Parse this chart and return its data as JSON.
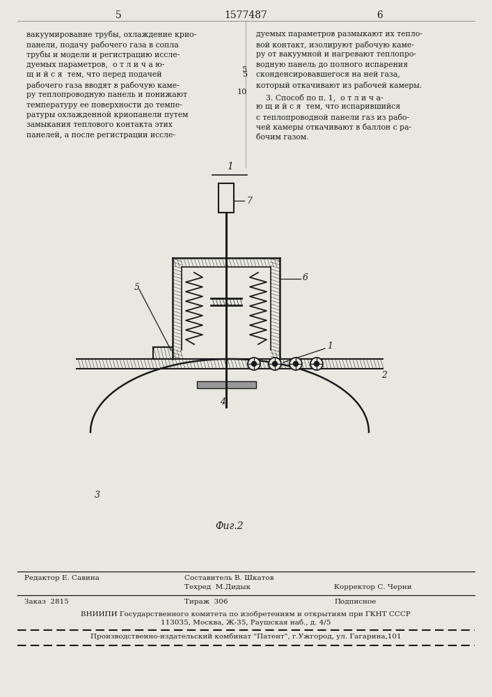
{
  "page_color": "#e8e8e0",
  "text_color": "#1a1a1a",
  "left_col_header": "5",
  "center_header": "1577487",
  "right_col_header": "6",
  "left_text": [
    "вакуумирование трубы, охлаждение крио-",
    "панели, подачу рабочего газа в сопла",
    "трубы и модели и регистрацию иссле-",
    "дуемых параметров,  о т л и ч а ю-",
    "щ и й с я  тем, что перед подачей",
    "рабочего газа вводят в рабочую каме-",
    "ру теплопроводную панель и понижают",
    "температуру ее поверхности до темпе-",
    "ратуры охлажденной криопанели путем",
    "замыкания теплового контакта этих",
    "панелей, а после регистрации иссле-"
  ],
  "right_text_top": [
    "дуемых параметров размыкают их тепло-",
    "вой контакт, изолируют рабочую каме-",
    "ру от вакуумной и нагревают теплопро-",
    "водную панель до полного испарения",
    "сконденсировавшегося на ней газа,",
    "который откачивают из рабочей камеры."
  ],
  "right_text_bottom": [
    "    3. Способ по п. 1,  о т л и ч а-",
    "ю щ и й с я  тем, что испарившийся",
    "с теплопроводной панели газ из рабо-",
    "чей камеры откачивают в баллон с ра-",
    "бочим газом."
  ],
  "fig_caption": "Фиг.2",
  "footer_editor": "Редактор Е. Савина",
  "footer_compiler": "Составитель В. Шкатов",
  "footer_tech": "Техред  М.Дидык",
  "footer_corrector": "Корректор С. Черни",
  "footer_order": "Заказ  2815",
  "footer_print": "Тираж  306",
  "footer_subscription": "Подписное",
  "footer_vniipи": "ВНИИПИ Государственного комитета по изобретениям и открытиям при ГКНТ СССР",
  "footer_address": "113035, Москва, Ж-35, Раушская наб., д. 4/5",
  "footer_production": "Производственно-издательский комбинат \"Патент\", г.Ужгород, ул. Гагарина,101"
}
